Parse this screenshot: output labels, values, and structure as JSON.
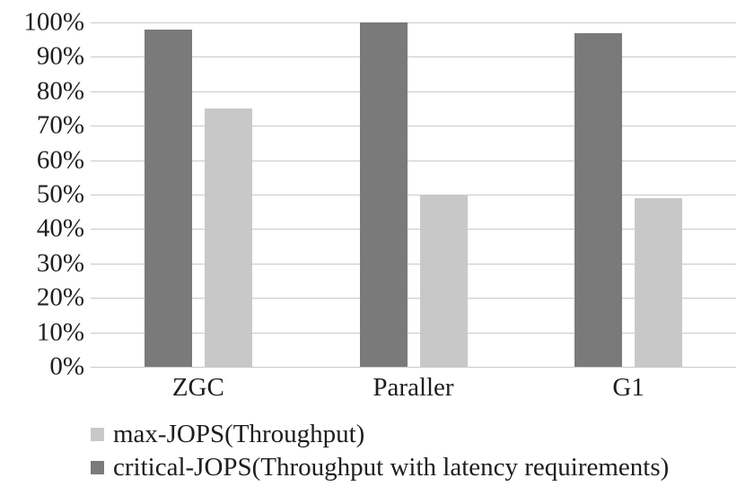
{
  "colors": {
    "dark": "#7a7a7a",
    "light": "#c8c8c8",
    "gridline": "#c9c9c9",
    "text": "#1e1e1e",
    "background": "#ffffff"
  },
  "chart_data": {
    "type": "bar",
    "categories": [
      "ZGC",
      "Paraller",
      "G1"
    ],
    "series": [
      {
        "key": "critical-jops",
        "name": "critical-JOPS(Throughput with latency requirements)",
        "color_key": "dark",
        "values": [
          98,
          100,
          97
        ]
      },
      {
        "key": "max-jops",
        "name": "max-JOPS(Throughput)",
        "color_key": "light",
        "values": [
          75,
          50,
          49
        ]
      }
    ],
    "title": "",
    "xlabel": "",
    "ylabel": "",
    "ylim": [
      0,
      100
    ],
    "grid": true,
    "legend_position": "bottom-left",
    "yticks": [
      {
        "value": 0,
        "label": "0%"
      },
      {
        "value": 10,
        "label": "10%"
      },
      {
        "value": 20,
        "label": "20%"
      },
      {
        "value": 30,
        "label": "30%"
      },
      {
        "value": 40,
        "label": "40%"
      },
      {
        "value": 50,
        "label": "50%"
      },
      {
        "value": 60,
        "label": "60%"
      },
      {
        "value": 70,
        "label": "70%"
      },
      {
        "value": 80,
        "label": "80%"
      },
      {
        "value": 90,
        "label": "90%"
      },
      {
        "value": 100,
        "label": "100%"
      }
    ]
  }
}
